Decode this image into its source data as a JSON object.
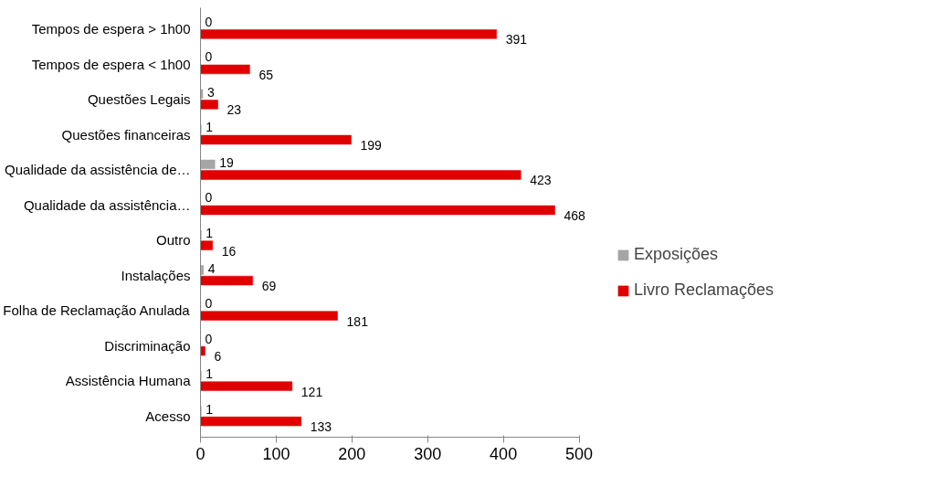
{
  "chart_data": {
    "type": "bar",
    "orientation": "horizontal",
    "categories": [
      "Tempos de espera > 1h00",
      "Tempos de espera < 1h00",
      "Questões Legais",
      "Questões financeiras",
      "Qualidade da assistência de…",
      "Qualidade da assistência…",
      "Outro",
      "Instalações",
      "Folha de Reclamação Anulada",
      "Discriminação",
      "Assistência Humana",
      "Acesso"
    ],
    "series": [
      {
        "name": "Exposições",
        "color": "#a6a6a6",
        "values": [
          0,
          0,
          3,
          1,
          19,
          0,
          1,
          4,
          0,
          0,
          1,
          1
        ]
      },
      {
        "name": "Livro Reclamações",
        "color": "#e00000",
        "values": [
          391,
          65,
          23,
          199,
          423,
          468,
          16,
          69,
          181,
          6,
          121,
          133
        ]
      }
    ],
    "xlim": [
      0,
      500
    ],
    "xticks": [
      0,
      100,
      200,
      300,
      400,
      500
    ],
    "grid": false,
    "legend": "right",
    "data_labels": true
  }
}
